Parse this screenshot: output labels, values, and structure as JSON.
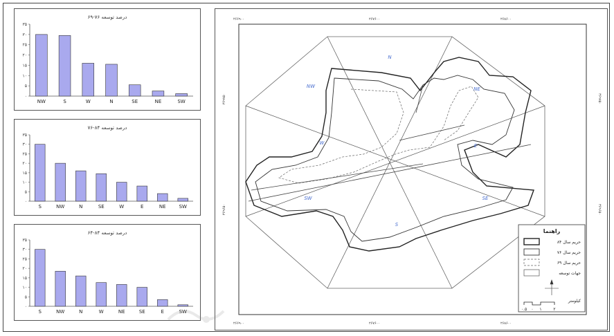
{
  "charts": [
    {
      "title": "درصد توسعه ۷۶-۶۹",
      "chart_data": {
        "type": "bar",
        "categories": [
          "NW",
          "S",
          "W",
          "N",
          "SE",
          "NE",
          "SW"
        ],
        "values": [
          30,
          29.5,
          16,
          15.5,
          5.5,
          2.5,
          1.2
        ],
        "yticks": [
          "۰",
          "۵",
          "۱۰",
          "۱۵",
          "۲۰",
          "۲۵",
          "۳۰",
          "۳۵"
        ],
        "ylim": [
          0,
          35
        ],
        "bar_color": "#a9a9ee"
      }
    },
    {
      "title": "درصد توسعه ۸۴-۷۶",
      "chart_data": {
        "type": "bar",
        "categories": [
          "S",
          "NW",
          "N",
          "SE",
          "W",
          "E",
          "NE",
          "SW"
        ],
        "values": [
          30,
          20,
          16,
          14.5,
          10,
          8,
          4,
          1.5
        ],
        "yticks": [
          "۰",
          "۵",
          "۱۰",
          "۱۵",
          "۲۰",
          "۲۵",
          "۳۰",
          "۳۵"
        ],
        "ylim": [
          0,
          35
        ],
        "bar_color": "#a9a9ee"
      }
    },
    {
      "title": "درصد توسعه ۸۴-۶۴",
      "chart_data": {
        "type": "bar",
        "categories": [
          "S",
          "NW",
          "N",
          "W",
          "NE",
          "SE",
          "E",
          "SW"
        ],
        "values": [
          30,
          18.5,
          16,
          12.5,
          11.5,
          10,
          3.5,
          0.8
        ],
        "yticks": [
          "۰",
          "۵",
          "۱۰",
          "۱۵",
          "۲۰",
          "۲۵",
          "۳۰",
          "۳۵"
        ],
        "ylim": [
          0,
          35
        ],
        "bar_color": "#a9a9ee"
      }
    }
  ],
  "map": {
    "coords_top": [
      "۲۶۶۹۰۰",
      "۲۶۷۶۰۰",
      "۲۶۸۶۰۰"
    ],
    "coords_bottom": [
      "۲۶۶۹۰۰",
      "۲۶۷۶۰۰",
      "۲۶۸۶۰۰"
    ],
    "coords_left": [
      "۳۶۹۷۵۰",
      "۳۶۹۶۵۰"
    ],
    "coords_right": [
      "۳۶۹۷۵۰",
      "۳۶۹۶۵۰"
    ],
    "directions": [
      "N",
      "NW",
      "NE",
      "W",
      "E",
      "SW",
      "SE",
      "S"
    ],
    "legend": {
      "title": "راهنما",
      "items": [
        "حریم سال ۸۴",
        "حریم سال ۷۶",
        "حریم سال ۶۹",
        "جهات توسعه"
      ],
      "scale_label": "کیلومتر",
      "scale_ticks": [
        "۰.۵",
        "۰",
        "۱",
        "۲"
      ]
    }
  }
}
